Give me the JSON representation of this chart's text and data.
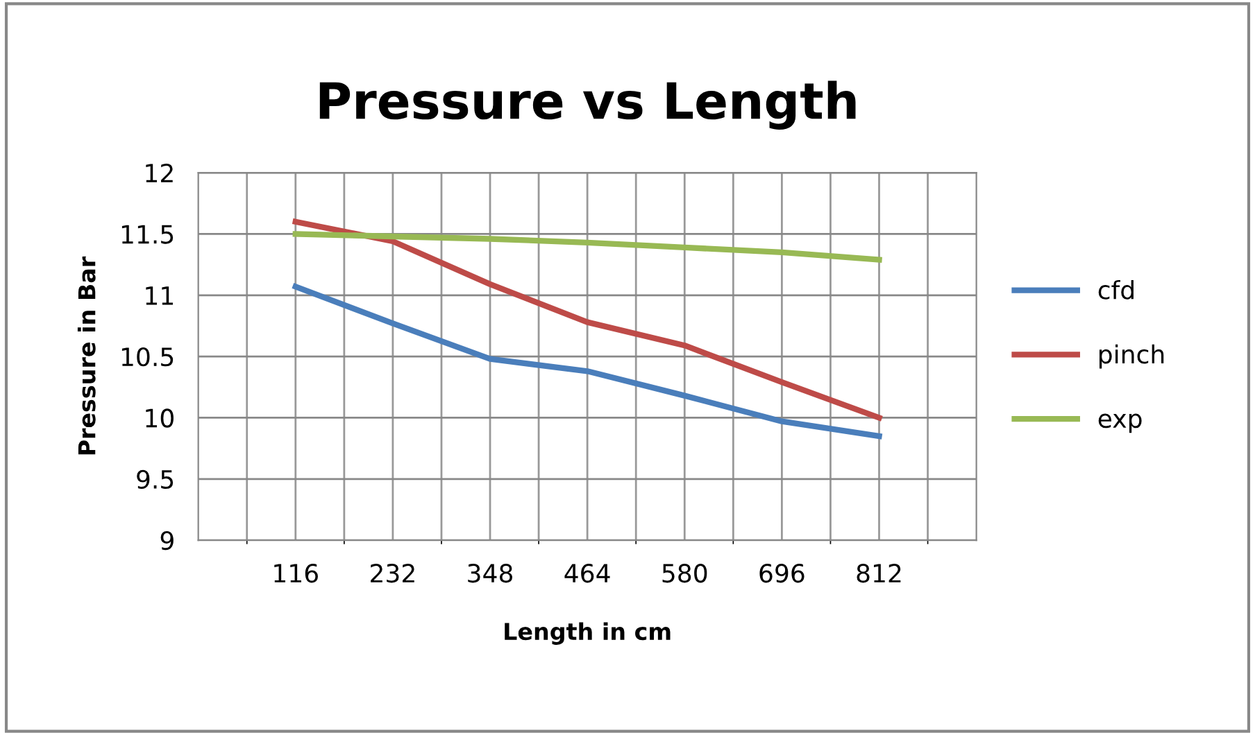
{
  "chart_data": {
    "type": "line",
    "title": "Pressure vs Length",
    "xlabel": "Length in cm",
    "ylabel": "Pressure in Bar",
    "categories": [
      "116",
      "232",
      "348",
      "464",
      "580",
      "696",
      "812"
    ],
    "series": [
      {
        "name": "cfd",
        "color": "#4a7ebb",
        "values": [
          11.07,
          10.77,
          10.48,
          10.38,
          10.18,
          9.97,
          9.85
        ]
      },
      {
        "name": "pinch",
        "color": "#be4b48",
        "values": [
          11.6,
          11.44,
          11.09,
          10.78,
          10.59,
          10.29,
          10.0
        ]
      },
      {
        "name": "exp",
        "color": "#98b954",
        "values": [
          11.5,
          11.48,
          11.46,
          11.43,
          11.39,
          11.35,
          11.29
        ]
      }
    ],
    "ylim": [
      9,
      12
    ],
    "yticks": [
      9,
      9.5,
      10,
      10.5,
      11,
      11.5,
      12
    ],
    "grid": true,
    "legend": "right",
    "marker": "none",
    "line_style": "solid"
  }
}
